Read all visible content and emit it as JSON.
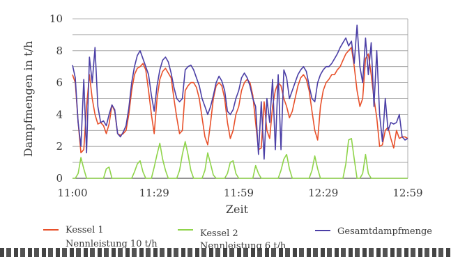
{
  "chart_data": {
    "type": "line",
    "title": "",
    "xlabel": "Zeit",
    "ylabel": "Dampfmengen in t/h",
    "ylim": [
      0,
      10
    ],
    "yticks": [
      "0",
      "2",
      "4",
      "6",
      "8",
      "10"
    ],
    "xlim": [
      0,
      119
    ],
    "xticks": [
      {
        "x": 0,
        "label": "11:00"
      },
      {
        "x": 29,
        "label": "11:29"
      },
      {
        "x": 59,
        "label": "11:59"
      },
      {
        "x": 89,
        "label": "12:29"
      },
      {
        "x": 119,
        "label": "12:59"
      }
    ],
    "grid": "horizontal",
    "legend_position": "bottom",
    "series": [
      {
        "key": "kessel1",
        "name": "Kessel 1",
        "sublabel": "Nennleistung 10 t/h",
        "color": "#e8502a",
        "x": [
          0,
          1,
          2,
          3,
          4,
          5,
          6,
          7,
          8,
          9,
          10,
          11,
          12,
          13,
          14,
          15,
          16,
          17,
          18,
          19,
          20,
          21,
          22,
          23,
          24,
          25,
          26,
          27,
          28,
          29,
          30,
          31,
          32,
          33,
          34,
          35,
          36,
          37,
          38,
          39,
          40,
          41,
          42,
          43,
          44,
          45,
          46,
          47,
          48,
          49,
          50,
          51,
          52,
          53,
          54,
          55,
          56,
          57,
          58,
          59,
          60,
          61,
          62,
          63,
          64,
          65,
          66,
          67,
          68,
          69,
          70,
          71,
          72,
          73,
          74,
          75,
          76,
          77,
          78,
          79,
          80,
          81,
          82,
          83,
          84,
          85,
          86,
          87,
          88,
          89,
          90,
          91,
          92,
          93,
          94,
          95,
          96,
          97,
          98,
          99,
          100,
          101,
          102,
          103,
          104,
          105,
          106,
          107,
          108,
          109,
          110,
          111,
          112,
          113,
          114,
          115,
          116,
          117,
          118,
          119
        ],
        "values": [
          6.5,
          6.0,
          3.5,
          1.6,
          1.8,
          4.5,
          6.5,
          5.0,
          4.0,
          3.4,
          3.5,
          3.3,
          2.8,
          3.4,
          4.6,
          4.2,
          2.8,
          2.7,
          2.8,
          3.0,
          4.0,
          5.5,
          6.5,
          6.9,
          7.0,
          7.2,
          6.8,
          5.5,
          4.0,
          2.8,
          5.0,
          6.2,
          6.7,
          6.9,
          6.6,
          6.3,
          5.0,
          3.8,
          2.8,
          3.0,
          5.5,
          5.8,
          6.0,
          6.0,
          5.7,
          5.0,
          3.8,
          2.6,
          2.1,
          3.5,
          5.0,
          5.8,
          6.0,
          5.8,
          5.0,
          3.5,
          2.5,
          3.0,
          4.0,
          4.5,
          5.5,
          6.0,
          6.2,
          6.0,
          5.2,
          3.5,
          1.8,
          1.9,
          4.8,
          3.0,
          2.5,
          4.5,
          5.5,
          6.0,
          5.8,
          5.0,
          4.5,
          3.8,
          4.2,
          5.0,
          5.8,
          6.3,
          6.5,
          6.2,
          5.5,
          4.2,
          3.0,
          2.4,
          4.5,
          5.5,
          6.0,
          6.2,
          6.5,
          6.5,
          6.8,
          7.0,
          7.4,
          7.8,
          8.0,
          8.2,
          7.0,
          5.5,
          4.5,
          5.0,
          7.5,
          7.8,
          6.5,
          5.0,
          3.8,
          2.0,
          2.1,
          3.0,
          3.2,
          2.5,
          1.9,
          3.0,
          2.5,
          2.6,
          2.6,
          2.5
        ]
      },
      {
        "key": "kessel2",
        "name": "Kessel 2",
        "sublabel": "Nennleistung 6 t/h",
        "color": "#8fd44a",
        "x": [
          0,
          1,
          2,
          3,
          4,
          5,
          6,
          7,
          8,
          9,
          10,
          11,
          12,
          13,
          14,
          15,
          16,
          17,
          18,
          19,
          20,
          21,
          22,
          23,
          24,
          25,
          26,
          27,
          28,
          29,
          30,
          31,
          32,
          33,
          34,
          35,
          36,
          37,
          38,
          39,
          40,
          41,
          42,
          43,
          44,
          45,
          46,
          47,
          48,
          49,
          50,
          51,
          52,
          53,
          54,
          55,
          56,
          57,
          58,
          59,
          60,
          61,
          62,
          63,
          64,
          65,
          66,
          67,
          68,
          69,
          70,
          71,
          72,
          73,
          74,
          75,
          76,
          77,
          78,
          79,
          80,
          81,
          82,
          83,
          84,
          85,
          86,
          87,
          88,
          89,
          90,
          91,
          92,
          93,
          94,
          95,
          96,
          97,
          98,
          99,
          100,
          101,
          102,
          103,
          104,
          105,
          106,
          107,
          108,
          109,
          110,
          111,
          112,
          113,
          114,
          115,
          116,
          117,
          118,
          119
        ],
        "values": [
          0,
          0,
          0.3,
          1.3,
          0.6,
          0,
          0,
          0,
          0,
          0,
          0,
          0,
          0.6,
          0.7,
          0,
          0,
          0,
          0,
          0,
          0,
          0,
          0,
          0.4,
          0.9,
          1.1,
          0.4,
          0,
          0,
          0,
          0.7,
          1.5,
          2.2,
          1.2,
          0.5,
          0,
          0,
          0,
          0,
          0.5,
          1.5,
          2.3,
          1.5,
          0.5,
          0,
          0,
          0,
          0,
          0.5,
          1.6,
          0.9,
          0.2,
          0,
          0,
          0,
          0,
          0.3,
          1.0,
          1.1,
          0.3,
          0,
          0,
          0,
          0,
          0,
          0,
          0.8,
          0.3,
          0,
          0,
          0,
          0,
          0,
          0,
          0,
          0.5,
          1.2,
          1.5,
          0.6,
          0,
          0,
          0,
          0,
          0,
          0,
          0,
          0.5,
          1.4,
          0.6,
          0,
          0,
          0,
          0,
          0,
          0,
          0,
          0,
          0,
          0.9,
          2.4,
          2.5,
          1.2,
          0,
          0,
          0.3,
          1.5,
          0.3,
          0,
          0,
          0,
          0,
          0,
          0,
          0,
          0,
          0,
          0,
          0,
          0,
          0,
          0
        ]
      },
      {
        "key": "gesamt",
        "name": "Gesamtdampfmenge",
        "sublabel": "",
        "color": "#4b3fa6",
        "x": [
          0,
          1,
          2,
          3,
          4,
          5,
          6,
          7,
          8,
          9,
          10,
          11,
          12,
          13,
          14,
          15,
          16,
          17,
          18,
          19,
          20,
          21,
          22,
          23,
          24,
          25,
          26,
          27,
          28,
          29,
          30,
          31,
          32,
          33,
          34,
          35,
          36,
          37,
          38,
          39,
          40,
          41,
          42,
          43,
          44,
          45,
          46,
          47,
          48,
          49,
          50,
          51,
          52,
          53,
          54,
          55,
          56,
          57,
          58,
          59,
          60,
          61,
          62,
          63,
          64,
          65,
          66,
          67,
          68,
          69,
          70,
          71,
          72,
          73,
          74,
          75,
          76,
          77,
          78,
          79,
          80,
          81,
          82,
          83,
          84,
          85,
          86,
          87,
          88,
          89,
          90,
          91,
          92,
          93,
          94,
          95,
          96,
          97,
          98,
          99,
          100,
          101,
          102,
          103,
          104,
          105,
          106,
          107,
          108,
          109,
          110,
          111,
          112,
          113,
          114,
          115,
          116,
          117,
          118,
          119
        ],
        "values": [
          7.1,
          6.3,
          3.5,
          2.0,
          6.2,
          1.6,
          7.6,
          6.0,
          8.2,
          4.5,
          3.5,
          3.6,
          3.3,
          4.0,
          4.6,
          4.3,
          2.8,
          2.6,
          2.9,
          3.3,
          4.4,
          6.0,
          7.0,
          7.7,
          8.0,
          7.5,
          7.0,
          6.5,
          5.2,
          4.2,
          5.8,
          6.8,
          7.4,
          7.6,
          7.3,
          6.6,
          5.7,
          5.0,
          4.8,
          5.0,
          6.8,
          7.0,
          7.1,
          6.8,
          6.3,
          5.8,
          5.0,
          4.5,
          4.0,
          4.5,
          5.2,
          6.0,
          6.4,
          6.1,
          5.5,
          4.2,
          4.0,
          4.3,
          5.0,
          5.5,
          6.3,
          6.6,
          6.3,
          5.8,
          5.0,
          4.5,
          1.5,
          4.8,
          1.2,
          5.0,
          3.5,
          6.2,
          1.8,
          6.5,
          1.8,
          6.8,
          6.3,
          5.0,
          5.5,
          6.0,
          6.5,
          6.8,
          7.0,
          6.7,
          5.8,
          5.0,
          4.8,
          6.0,
          6.5,
          6.8,
          7.0,
          7.0,
          7.2,
          7.5,
          7.8,
          8.2,
          8.5,
          8.8,
          8.3,
          8.6,
          7.2,
          9.6,
          7.0,
          6.0,
          8.8,
          6.5,
          8.5,
          4.5,
          8.0,
          4.0,
          2.3,
          5.0,
          3.0,
          3.5,
          3.4,
          3.5,
          4.0,
          2.6,
          2.4,
          2.5
        ]
      }
    ]
  }
}
